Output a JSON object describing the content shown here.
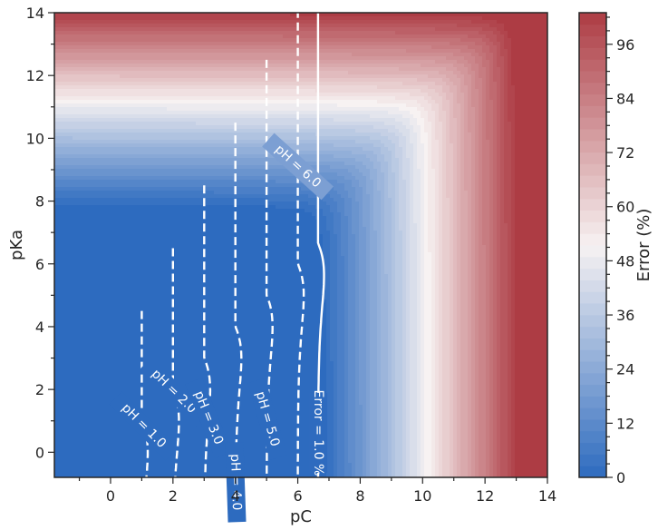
{
  "chart_data": {
    "type": "heatmap",
    "xlabel": "pC",
    "ylabel": "pKa",
    "xlim": [
      -1.8,
      14
    ],
    "ylim": [
      -0.8,
      14
    ],
    "xticks_major": [
      0,
      2,
      4,
      6,
      8,
      10,
      12,
      14
    ],
    "yticks_major": [
      0,
      2,
      4,
      6,
      8,
      10,
      12,
      14
    ],
    "colorbar": {
      "label": "Error (%)",
      "range": [
        0,
        103
      ],
      "ticks": [
        0,
        12,
        24,
        36,
        48,
        60,
        72,
        84,
        96
      ],
      "colormap": [
        "#2d6bbf",
        "#f7f2f2",
        "#ad3c44"
      ]
    },
    "error_field": {
      "x_half_error": 9.9,
      "x_full_error": 14.3,
      "boundary_pka_offset": 1.0
    },
    "contours": [
      {
        "label": "pH = 1.0",
        "style": "dashed",
        "pH": 1.0
      },
      {
        "label": "pH = 2.0",
        "style": "dashed",
        "pH": 2.0
      },
      {
        "label": "pH = 3.0",
        "style": "dashed",
        "pH": 3.0
      },
      {
        "label": "pH = 4.0",
        "style": "dashed",
        "pH": 4.0
      },
      {
        "label": "pH = 5.0",
        "style": "dashed",
        "pH": 5.0
      },
      {
        "label": "pH = 6.0",
        "style": "dashed",
        "pH": 6.0
      },
      {
        "label": "Error = 1.0 %",
        "style": "solid",
        "pH": 6.65
      }
    ]
  }
}
